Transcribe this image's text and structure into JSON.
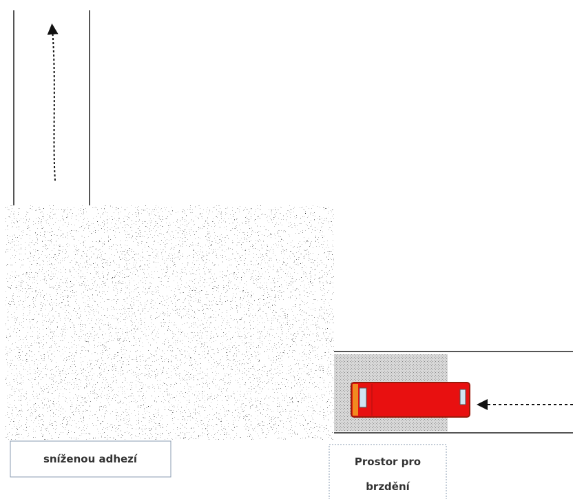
{
  "labels": {
    "reduced_adhesion": "sníženou adhezí",
    "braking_space": [
      "Prostor pro",
      "brzdění"
    ]
  }
}
